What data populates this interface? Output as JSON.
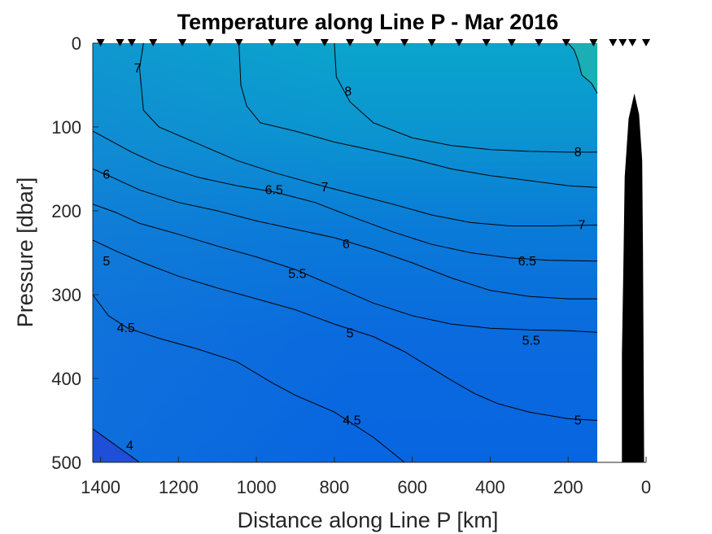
{
  "chart_data": {
    "type": "contour",
    "title": "Temperature along Line P - Mar 2016",
    "xlabel": "Distance along Line P [km]",
    "ylabel": "Pressure [dbar]",
    "xlim": [
      1420,
      0
    ],
    "ylim": [
      0,
      500
    ],
    "x_reversed": true,
    "y_reversed": true,
    "xticks": [
      1400,
      1200,
      1000,
      800,
      600,
      400,
      200,
      0
    ],
    "yticks": [
      0,
      100,
      200,
      300,
      400,
      500
    ],
    "data_extent_km": [
      1420,
      125
    ],
    "colors": {
      "deep": "#1e4fd6",
      "mid": "#0a7ad8",
      "warm": "#0aa5cc",
      "warmest": "#1aafb4",
      "bathymetry": "#000000"
    },
    "station_markers_km": [
      1400,
      1350,
      1320,
      1265,
      1190,
      1120,
      1045,
      960,
      895,
      825,
      760,
      690,
      620,
      550,
      480,
      410,
      345,
      275,
      205,
      135,
      85,
      60,
      35,
      0
    ],
    "contours": [
      {
        "level": "8.5",
        "points": [
          [
            200,
            0
          ],
          [
            185,
            8
          ],
          [
            175,
            20
          ],
          [
            165,
            38
          ],
          [
            140,
            48
          ],
          [
            125,
            60
          ]
        ]
      },
      {
        "level": "8",
        "points": [
          [
            800,
            0
          ],
          [
            795,
            40
          ],
          [
            760,
            70
          ],
          [
            700,
            95
          ],
          [
            600,
            113
          ],
          [
            500,
            122
          ],
          [
            400,
            127
          ],
          [
            300,
            129
          ],
          [
            200,
            130
          ],
          [
            125,
            130
          ]
        ]
      },
      {
        "level": "7",
        "points": [
          [
            1290,
            0
          ],
          [
            1300,
            30
          ],
          [
            1290,
            80
          ],
          [
            1250,
            100
          ],
          [
            1150,
            120
          ],
          [
            1050,
            140
          ],
          [
            950,
            155
          ],
          [
            850,
            168
          ],
          [
            750,
            180
          ],
          [
            650,
            192
          ],
          [
            550,
            205
          ],
          [
            450,
            214
          ],
          [
            350,
            218
          ],
          [
            250,
            218
          ],
          [
            125,
            217
          ]
        ]
      },
      {
        "level": "7.5",
        "points": [
          [
            1045,
            0
          ],
          [
            1040,
            50
          ],
          [
            1025,
            75
          ],
          [
            990,
            95
          ],
          [
            900,
            105
          ],
          [
            800,
            118
          ],
          [
            700,
            128
          ],
          [
            600,
            138
          ],
          [
            500,
            150
          ],
          [
            400,
            158
          ],
          [
            300,
            164
          ],
          [
            200,
            170
          ],
          [
            125,
            172
          ]
        ]
      },
      {
        "level": "6.5",
        "points": [
          [
            1420,
            105
          ],
          [
            1380,
            115
          ],
          [
            1320,
            130
          ],
          [
            1250,
            145
          ],
          [
            1150,
            160
          ],
          [
            1050,
            170
          ],
          [
            950,
            178
          ],
          [
            850,
            190
          ],
          [
            750,
            208
          ],
          [
            650,
            225
          ],
          [
            550,
            240
          ],
          [
            450,
            250
          ],
          [
            350,
            256
          ],
          [
            250,
            259
          ],
          [
            125,
            260
          ]
        ]
      },
      {
        "level": "6",
        "points": [
          [
            1420,
            150
          ],
          [
            1370,
            160
          ],
          [
            1300,
            175
          ],
          [
            1200,
            190
          ],
          [
            1100,
            200
          ],
          [
            1000,
            212
          ],
          [
            900,
            222
          ],
          [
            800,
            232
          ],
          [
            700,
            246
          ],
          [
            600,
            262
          ],
          [
            500,
            280
          ],
          [
            400,
            295
          ],
          [
            300,
            302
          ],
          [
            200,
            305
          ],
          [
            125,
            305
          ]
        ]
      },
      {
        "level": "5.5",
        "points": [
          [
            1420,
            192
          ],
          [
            1360,
            202
          ],
          [
            1300,
            215
          ],
          [
            1200,
            228
          ],
          [
            1100,
            242
          ],
          [
            1000,
            255
          ],
          [
            900,
            270
          ],
          [
            800,
            290
          ],
          [
            700,
            310
          ],
          [
            600,
            325
          ],
          [
            500,
            335
          ],
          [
            400,
            340
          ],
          [
            300,
            342
          ],
          [
            200,
            343
          ],
          [
            125,
            345
          ]
        ]
      },
      {
        "level": "5",
        "points": [
          [
            1420,
            235
          ],
          [
            1360,
            248
          ],
          [
            1290,
            262
          ],
          [
            1200,
            278
          ],
          [
            1100,
            292
          ],
          [
            1000,
            305
          ],
          [
            900,
            318
          ],
          [
            800,
            335
          ],
          [
            700,
            350
          ],
          [
            620,
            368
          ],
          [
            560,
            385
          ],
          [
            500,
            402
          ],
          [
            440,
            418
          ],
          [
            380,
            430
          ],
          [
            300,
            440
          ],
          [
            200,
            448
          ],
          [
            125,
            450
          ]
        ]
      },
      {
        "level": "4.5",
        "points": [
          [
            1420,
            300
          ],
          [
            1380,
            325
          ],
          [
            1330,
            340
          ],
          [
            1250,
            352
          ],
          [
            1150,
            365
          ],
          [
            1050,
            380
          ],
          [
            960,
            405
          ],
          [
            900,
            420
          ],
          [
            800,
            440
          ],
          [
            700,
            470
          ],
          [
            620,
            500
          ],
          [
            560,
            530
          ],
          [
            540,
            545
          ],
          [
            525,
            560
          ],
          [
            520,
            565
          ]
        ]
      },
      {
        "level": "4",
        "points": [
          [
            1420,
            460
          ],
          [
            1360,
            480
          ],
          [
            1300,
            500
          ],
          [
            1260,
            520
          ],
          [
            1230,
            545
          ]
        ]
      }
    ],
    "contour_labels": [
      {
        "text": "7",
        "km": 1305,
        "p": 30
      },
      {
        "text": "8",
        "km": 765,
        "p": 58
      },
      {
        "text": "8",
        "km": 175,
        "p": 130
      },
      {
        "text": "6",
        "km": 1385,
        "p": 157
      },
      {
        "text": "7",
        "km": 825,
        "p": 172
      },
      {
        "text": "6.5",
        "km": 955,
        "p": 175
      },
      {
        "text": "7",
        "km": 165,
        "p": 217
      },
      {
        "text": "6",
        "km": 770,
        "p": 240
      },
      {
        "text": "6.5",
        "km": 305,
        "p": 260
      },
      {
        "text": "5",
        "km": 1385,
        "p": 260
      },
      {
        "text": "5.5",
        "km": 895,
        "p": 275
      },
      {
        "text": "4.5",
        "km": 1335,
        "p": 340
      },
      {
        "text": "5",
        "km": 760,
        "p": 346
      },
      {
        "text": "5.5",
        "km": 295,
        "p": 355
      },
      {
        "text": "4.5",
        "km": 755,
        "p": 450
      },
      {
        "text": "5",
        "km": 175,
        "p": 450
      },
      {
        "text": "4",
        "km": 1325,
        "p": 480
      }
    ],
    "bathymetry": [
      [
        62,
        500
      ],
      [
        62,
        370
      ],
      [
        58,
        260
      ],
      [
        55,
        160
      ],
      [
        45,
        90
      ],
      [
        30,
        60
      ],
      [
        18,
        85
      ],
      [
        10,
        140
      ],
      [
        8,
        250
      ],
      [
        5,
        500
      ]
    ]
  }
}
